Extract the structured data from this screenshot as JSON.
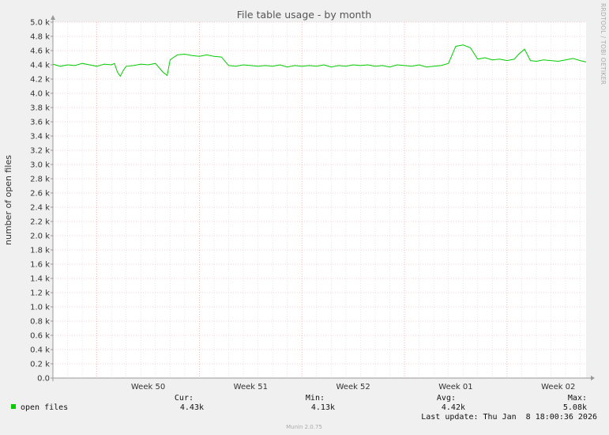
{
  "chart_data": {
    "type": "line",
    "title": "File table usage - by month",
    "ylabel": "number of open files",
    "xlabel": "",
    "ylim": [
      0,
      5000
    ],
    "grid": true,
    "y_ticks": [
      "0.0",
      "0.2 k",
      "0.4 k",
      "0.6 k",
      "0.8 k",
      "1.0 k",
      "1.2 k",
      "1.4 k",
      "1.6 k",
      "1.8 k",
      "2.0 k",
      "2.2 k",
      "2.4 k",
      "2.6 k",
      "2.8 k",
      "3.0 k",
      "3.2 k",
      "3.4 k",
      "3.6 k",
      "3.8 k",
      "4.0 k",
      "4.2 k",
      "4.4 k",
      "4.6 k",
      "4.8 k",
      "5.0 k"
    ],
    "x_ticks": [
      {
        "label": "Week 50",
        "x": 6.5
      },
      {
        "label": "Week 51",
        "x": 13.5
      },
      {
        "label": "Week 52",
        "x": 20.5
      },
      {
        "label": "Week 01",
        "x": 27.5
      },
      {
        "label": "Week 02",
        "x": 34.5
      }
    ],
    "x_range": [
      0,
      36.4
    ],
    "series": [
      {
        "name": "open files",
        "color": "#00cc00",
        "x": [
          0,
          0.5,
          1,
          1.5,
          2,
          2.5,
          3,
          3.5,
          4,
          4.2,
          4.4,
          4.6,
          4.8,
          5,
          5.5,
          6,
          6.5,
          7,
          7.5,
          7.8,
          8.0,
          8.2,
          8.5,
          9,
          9.5,
          10,
          10.5,
          11,
          11.5,
          12,
          12.5,
          13,
          13.5,
          14,
          14.5,
          15,
          15.5,
          16,
          16.5,
          17,
          17.5,
          18,
          18.5,
          19,
          19.5,
          20,
          20.5,
          21,
          21.5,
          22,
          22.5,
          23,
          23.5,
          24,
          24.5,
          25,
          25.5,
          26,
          26.5,
          27,
          27.5,
          28,
          28.5,
          29,
          29.5,
          30,
          30.5,
          31,
          31.5,
          31.8,
          32.2,
          32.6,
          33,
          33.5,
          34,
          34.5,
          35,
          35.5,
          36,
          36.4
        ],
        "values": [
          4410,
          4380,
          4400,
          4390,
          4420,
          4400,
          4380,
          4410,
          4400,
          4420,
          4300,
          4240,
          4320,
          4380,
          4390,
          4410,
          4400,
          4420,
          4300,
          4250,
          4470,
          4500,
          4540,
          4550,
          4530,
          4520,
          4540,
          4520,
          4510,
          4390,
          4380,
          4400,
          4390,
          4380,
          4390,
          4380,
          4400,
          4370,
          4390,
          4380,
          4390,
          4380,
          4400,
          4370,
          4390,
          4380,
          4400,
          4390,
          4400,
          4380,
          4390,
          4370,
          4400,
          4390,
          4380,
          4400,
          4370,
          4380,
          4390,
          4420,
          4660,
          4680,
          4640,
          4480,
          4500,
          4470,
          4480,
          4460,
          4480,
          4550,
          4620,
          4460,
          4450,
          4470,
          4460,
          4450,
          4470,
          4490,
          4460,
          4440
        ]
      }
    ],
    "legend": {
      "cur_label": "Cur:",
      "min_label": "Min:",
      "avg_label": "Avg:",
      "max_label": "Max:",
      "cur": "4.43k",
      "min": "4.13k",
      "avg": "4.42k",
      "max": "5.08k"
    },
    "last_update": "Last update: Thu Jan  8 18:00:36 2026",
    "vendor": "RRDTOOL / TOBI OETIKER",
    "generator": "Munin 2.0.75"
  }
}
